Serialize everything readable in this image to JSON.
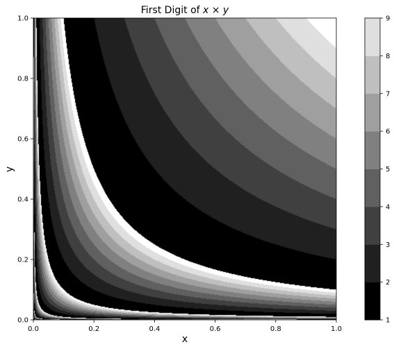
{
  "chart_data": {
    "type": "heatmap",
    "title_prefix": "First Digit of ",
    "title_math": "x × y",
    "xlabel": "x",
    "ylabel": "y",
    "xlim": [
      0.0,
      1.0
    ],
    "ylim": [
      0.0,
      1.0
    ],
    "x_ticks": [
      "0.0",
      "0.2",
      "0.4",
      "0.6",
      "0.8",
      "1.0"
    ],
    "y_ticks": [
      "0.0",
      "0.2",
      "0.4",
      "0.6",
      "0.8",
      "1.0"
    ],
    "colorbar": {
      "range": [
        1,
        9
      ],
      "ticks": [
        "1",
        "2",
        "3",
        "4",
        "5",
        "6",
        "7",
        "8",
        "9"
      ]
    },
    "function": "first significant digit of x*y",
    "colormap": "grayscale (1 = black, 9 = white)"
  },
  "colors": {
    "low": "#000000",
    "high": "#ffffff"
  }
}
